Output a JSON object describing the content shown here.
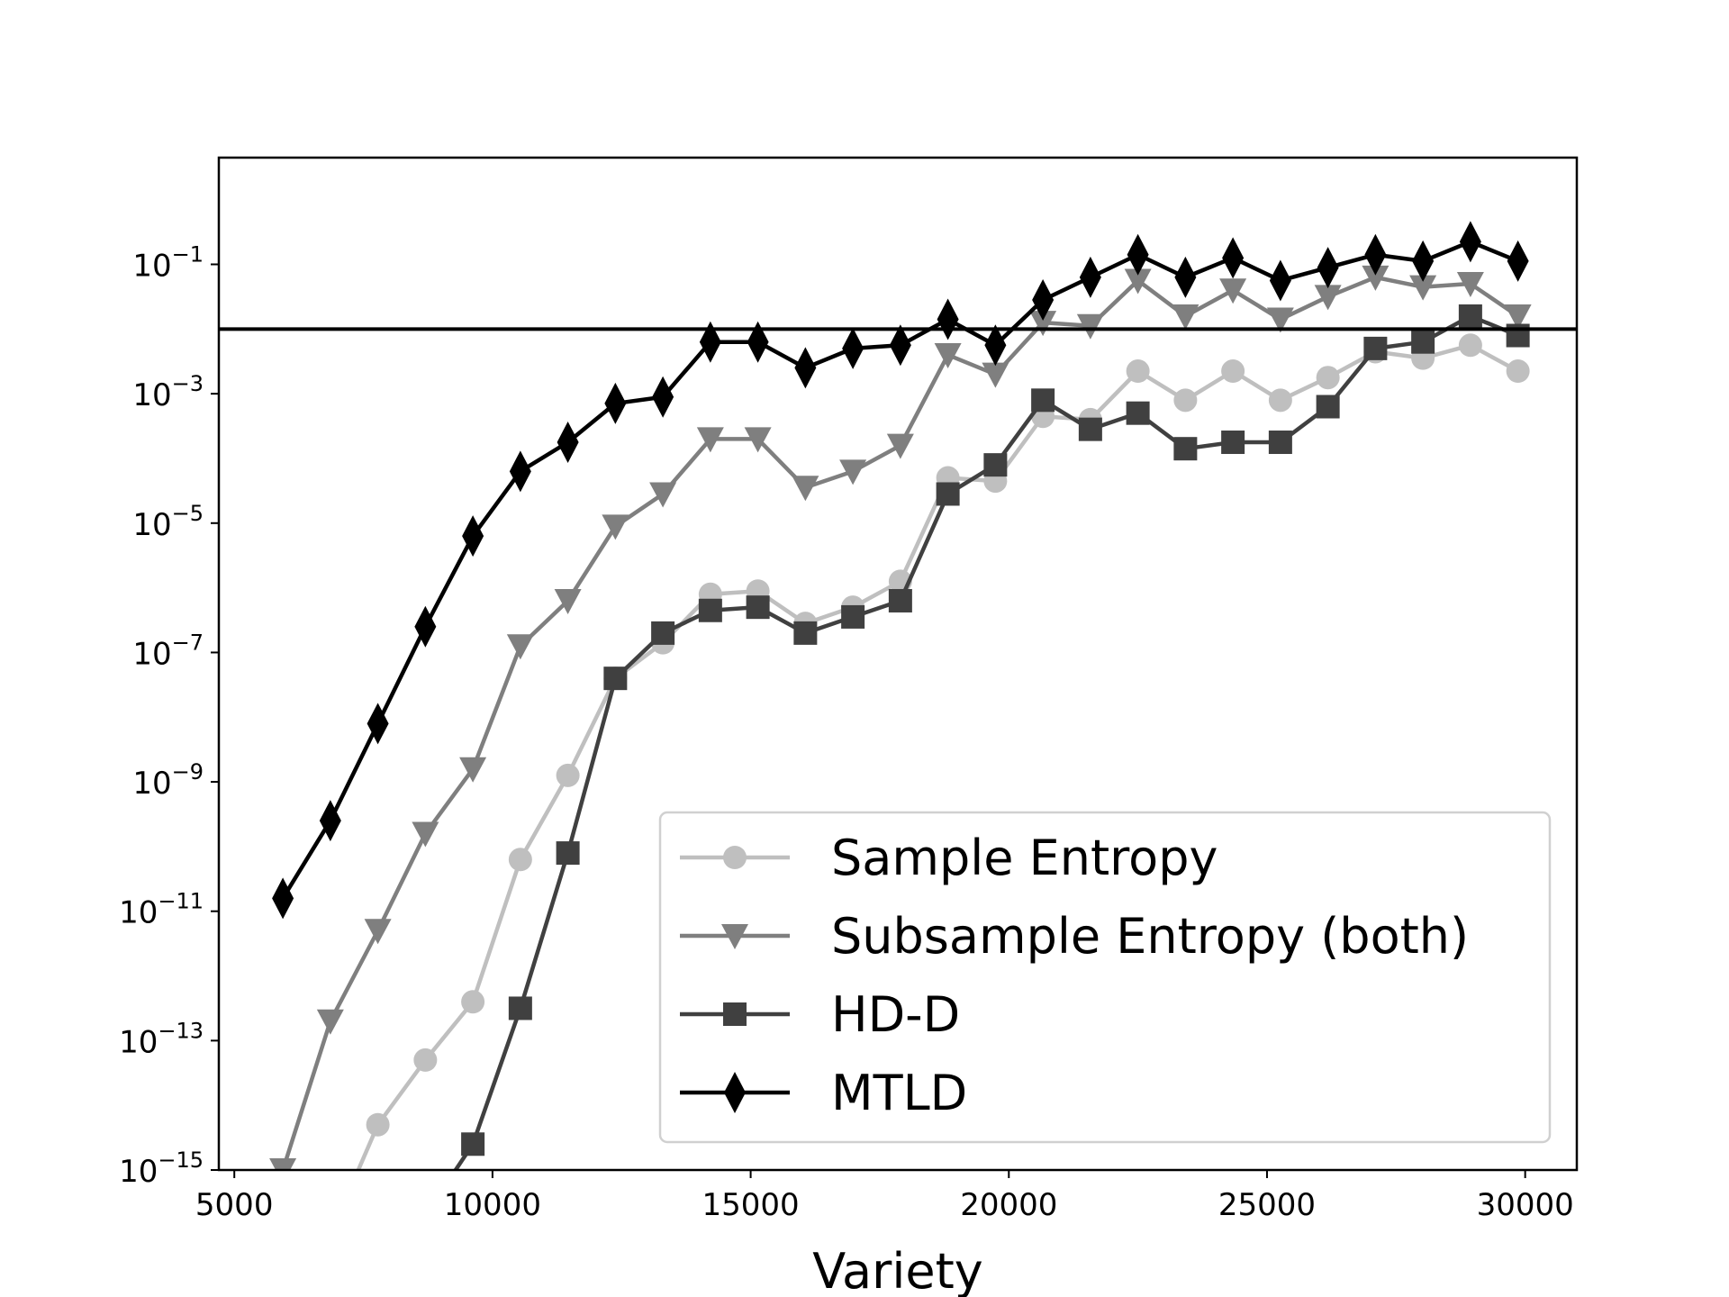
{
  "chart_data": {
    "type": "line",
    "title": "",
    "xlabel": "Variety",
    "ylabel": "",
    "xlim": [
      4700,
      31000
    ],
    "ylog": true,
    "ylim_log10": [
      -15,
      0.65
    ],
    "x_ticks": [
      5000,
      10000,
      15000,
      20000,
      25000,
      30000
    ],
    "x_tick_labels": [
      "5000",
      "10000",
      "15000",
      "20000",
      "25000",
      "30000"
    ],
    "y_ticks_log10": [
      -1,
      -3,
      -5,
      -7,
      -9,
      -11,
      -13,
      -15
    ],
    "y_tick_base": "10",
    "y_tick_exponents": [
      "−1",
      "−3",
      "−5",
      "−7",
      "−9",
      "−11",
      "−13",
      "−15"
    ],
    "hline_log10": -2,
    "grid": false,
    "legend_position": "lower-right",
    "x": [
      5940,
      6860,
      7780,
      8700,
      9620,
      10540,
      11460,
      12380,
      13300,
      14220,
      15140,
      16060,
      16980,
      17900,
      18820,
      19740,
      20660,
      21580,
      22500,
      23420,
      24340,
      25260,
      26180,
      27100,
      28020,
      28940,
      29860
    ],
    "series": [
      {
        "name": "Sample Entropy",
        "color": "#bfbfbf",
        "marker": "circle",
        "log10_values": [
          -17,
          -16,
          -14.3,
          -13.3,
          -12.4,
          -10.2,
          -8.9,
          -7.4,
          -6.85,
          -6.1,
          -6.05,
          -6.55,
          -6.3,
          -5.9,
          -4.3,
          -4.35,
          -3.35,
          -3.4,
          -2.65,
          -3.1,
          -2.65,
          -3.1,
          -2.75,
          -2.35,
          -2.45,
          -2.25,
          -2.65
        ]
      },
      {
        "name": "Subsample Entropy (both)",
        "color": "#7f7f7f",
        "marker": "triangle-down",
        "log10_values": [
          -15,
          -12.7,
          -11.3,
          -9.8,
          -8.8,
          -6.9,
          -6.2,
          -5.05,
          -4.55,
          -3.7,
          -3.7,
          -4.45,
          -4.2,
          -3.8,
          -2.4,
          -2.7,
          -1.9,
          -1.95,
          -1.25,
          -1.8,
          -1.4,
          -1.85,
          -1.5,
          -1.2,
          -1.35,
          -1.3,
          -1.8
        ]
      },
      {
        "name": "HD-D",
        "color": "#404040",
        "marker": "square",
        "log10_values": [
          -17,
          -16,
          -15.8,
          -15.7,
          -14.6,
          -12.5,
          -10.1,
          -7.4,
          -6.7,
          -6.35,
          -6.3,
          -6.7,
          -6.45,
          -6.2,
          -4.55,
          -4.1,
          -3.1,
          -3.55,
          -3.3,
          -3.85,
          -3.75,
          -3.75,
          -3.2,
          -2.3,
          -2.2,
          -1.8,
          -2.1
        ]
      },
      {
        "name": "MTLD",
        "color": "#000000",
        "marker": "diamond",
        "log10_values": [
          -10.8,
          -9.6,
          -8.1,
          -6.6,
          -5.2,
          -4.2,
          -3.75,
          -3.15,
          -3.05,
          -2.2,
          -2.2,
          -2.6,
          -2.3,
          -2.25,
          -1.85,
          -2.25,
          -1.55,
          -1.2,
          -0.85,
          -1.2,
          -0.9,
          -1.25,
          -1.05,
          -0.85,
          -0.95,
          -0.65,
          -0.95
        ]
      }
    ]
  }
}
